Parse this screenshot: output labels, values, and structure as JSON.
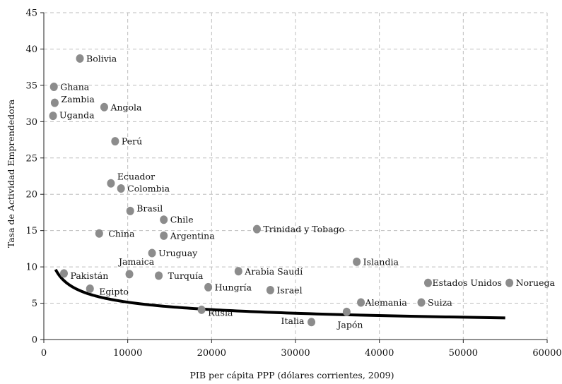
{
  "chart_data": {
    "type": "scatter",
    "title": "",
    "xlabel": "PIB per cápita PPP (dólares corrientes, 2009)",
    "ylabel": "Tasa de Actividad Emprendedora",
    "xlim": [
      0,
      60000
    ],
    "ylim": [
      0,
      45
    ],
    "xticks": [
      0,
      10000,
      20000,
      30000,
      40000,
      50000,
      60000
    ],
    "yticks": [
      0,
      5,
      10,
      15,
      20,
      25,
      30,
      35,
      40,
      45
    ],
    "grid": true,
    "point_color": "#8c8c8c",
    "trend_color": "#000000",
    "points": [
      {
        "label": "Bolivia",
        "x": 4300,
        "y": 38.7
      },
      {
        "label": "Ghana",
        "x": 1200,
        "y": 34.8
      },
      {
        "label": "Zambia",
        "x": 1300,
        "y": 32.6
      },
      {
        "label": "Uganda",
        "x": 1100,
        "y": 30.8
      },
      {
        "label": "Angola",
        "x": 7200,
        "y": 32.0
      },
      {
        "label": "Perú",
        "x": 8500,
        "y": 27.3
      },
      {
        "label": "Ecuador",
        "x": 8000,
        "y": 21.5
      },
      {
        "label": "Colombia",
        "x": 9200,
        "y": 20.8
      },
      {
        "label": "Brasil",
        "x": 10300,
        "y": 17.7
      },
      {
        "label": "Chile",
        "x": 14300,
        "y": 16.5
      },
      {
        "label": "China",
        "x": 6600,
        "y": 14.6
      },
      {
        "label": "Argentina",
        "x": 14300,
        "y": 14.3
      },
      {
        "label": "Trinidad y Tobago",
        "x": 25400,
        "y": 15.2
      },
      {
        "label": "Uruguay",
        "x": 12900,
        "y": 11.9
      },
      {
        "label": "Jamaica",
        "x": 10200,
        "y": 9.0
      },
      {
        "label": "Pakistán",
        "x": 2400,
        "y": 9.1
      },
      {
        "label": "Turquía",
        "x": 13700,
        "y": 8.8
      },
      {
        "label": "Arabia Saudí",
        "x": 23200,
        "y": 9.4
      },
      {
        "label": "Islandia",
        "x": 37300,
        "y": 10.7
      },
      {
        "label": "Egipto",
        "x": 5500,
        "y": 7.0
      },
      {
        "label": "Hungría",
        "x": 19600,
        "y": 7.2
      },
      {
        "label": "Israel",
        "x": 27000,
        "y": 6.8
      },
      {
        "label": "Estados Unidos",
        "x": 45800,
        "y": 7.8
      },
      {
        "label": "Noruega",
        "x": 55500,
        "y": 7.8
      },
      {
        "label": "Alemania",
        "x": 37800,
        "y": 5.1
      },
      {
        "label": "Suiza",
        "x": 45000,
        "y": 5.1
      },
      {
        "label": "Rusia",
        "x": 18800,
        "y": 4.1
      },
      {
        "label": "Italia",
        "x": 31900,
        "y": 2.4
      },
      {
        "label": "Japón",
        "x": 36100,
        "y": 3.8
      }
    ],
    "trendline": {
      "type": "power",
      "a": 97.8,
      "b": -0.3198,
      "x_range": [
        1400,
        55000
      ]
    }
  }
}
